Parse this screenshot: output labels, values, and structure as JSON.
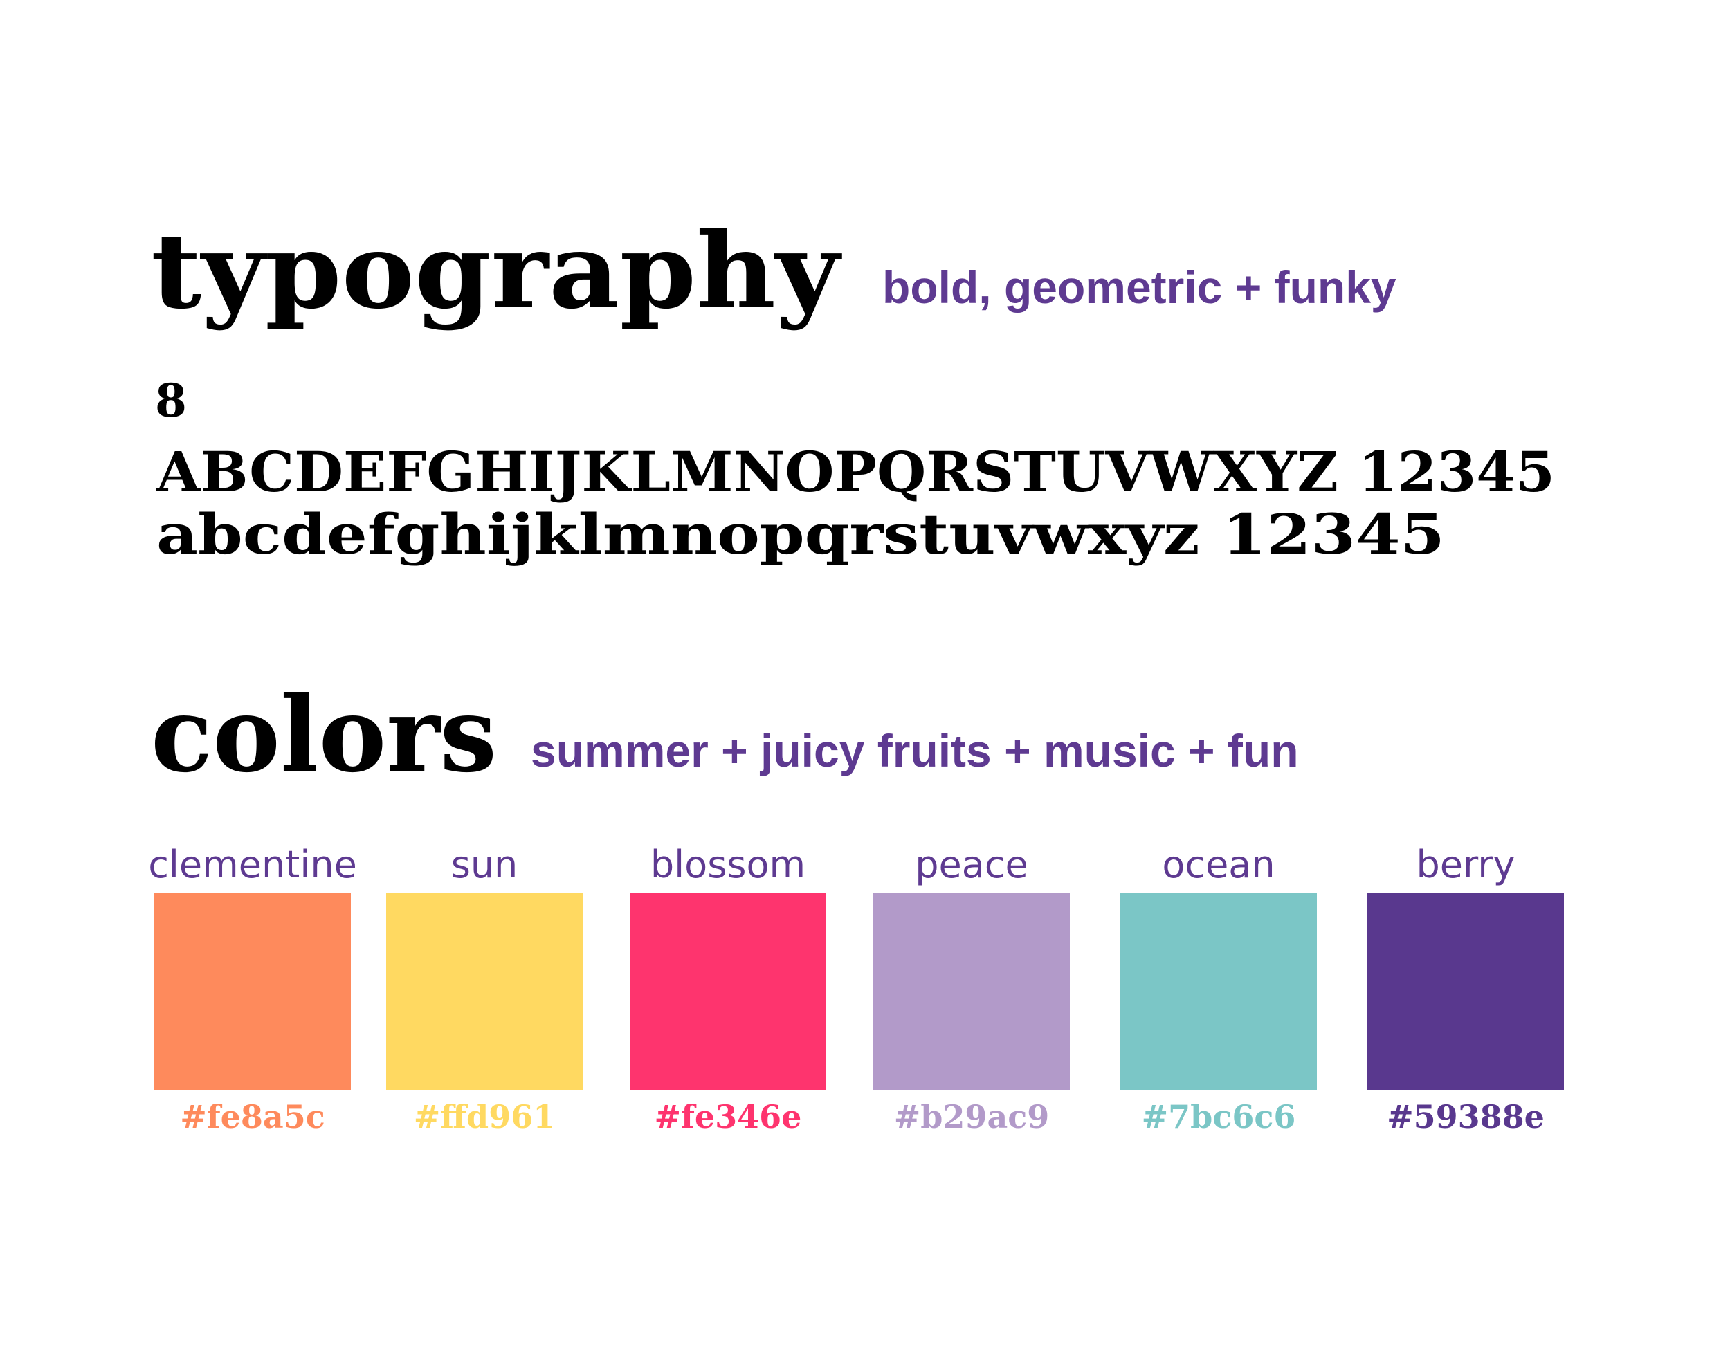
{
  "typography": {
    "title": "typography",
    "subtitle": "bold, geometric + funky",
    "sample_size": "8",
    "uppercase": "ABCDEFGHIJKLMNOPQRSTUVWXYZ 12345",
    "lowercase": "abcdefghijklmnopqrstuvwxyz 12345"
  },
  "colors": {
    "title": "colors",
    "subtitle": "summer + juicy fruits + music + fun",
    "swatches": [
      {
        "name": "clementine",
        "hex": "#fe8a5c"
      },
      {
        "name": "sun",
        "hex": "#ffd961"
      },
      {
        "name": "blossom",
        "hex": "#fe346e"
      },
      {
        "name": "peace",
        "hex": "#b29ac9"
      },
      {
        "name": "ocean",
        "hex": "#7bc6c6"
      },
      {
        "name": "berry",
        "hex": "#59388e"
      }
    ]
  }
}
